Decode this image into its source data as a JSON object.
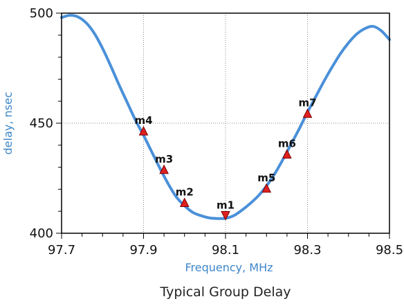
{
  "chart_data": {
    "type": "line",
    "title": "Typical Group Delay",
    "xlabel": "Frequency, MHz",
    "ylabel": "delay, nsec",
    "xlim": [
      97.7,
      98.5
    ],
    "ylim": [
      400,
      500
    ],
    "xticks": [
      "97.7",
      "97.9",
      "98.1",
      "98.3",
      "98.5"
    ],
    "yticks": [
      "400",
      "450",
      "500"
    ],
    "x_gridlines": [
      97.9,
      98.1,
      98.3
    ],
    "y_gridlines": [
      450
    ],
    "grid": "dotted",
    "series": [
      {
        "color": "#4a90d9",
        "x": [
          97.7,
          97.72,
          97.74,
          97.76,
          97.78,
          97.8,
          97.82,
          97.84,
          97.86,
          97.88,
          97.9,
          97.92,
          97.94,
          97.96,
          97.98,
          98.0,
          98.02,
          98.04,
          98.06,
          98.08,
          98.1,
          98.12,
          98.14,
          98.16,
          98.18,
          98.2,
          98.22,
          98.24,
          98.26,
          98.28,
          98.3,
          98.32,
          98.34,
          98.36,
          98.38,
          98.4,
          98.42,
          98.44,
          98.46,
          98.48,
          98.5
        ],
        "y": [
          498.0,
          499.0,
          498.3,
          495.6,
          490.8,
          484.0,
          476.0,
          467.5,
          459.5,
          451.5,
          444.5,
          437.0,
          429.5,
          422.5,
          416.5,
          412.5,
          409.5,
          408.0,
          407.0,
          406.7,
          406.8,
          408.0,
          410.5,
          413.5,
          417.0,
          421.5,
          427.0,
          433.5,
          440.5,
          447.5,
          455.0,
          462.0,
          469.0,
          475.5,
          481.5,
          486.5,
          490.5,
          493.0,
          494.0,
          492.0,
          488.0
        ]
      }
    ],
    "markers": [
      {
        "label": "m1",
        "x": 98.1,
        "y": 408.0,
        "direction": "down"
      },
      {
        "label": "m2",
        "x": 98.0,
        "y": 414.0,
        "direction": "up"
      },
      {
        "label": "m3",
        "x": 97.95,
        "y": 429.0,
        "direction": "up"
      },
      {
        "label": "m4",
        "x": 97.9,
        "y": 446.5,
        "direction": "up"
      },
      {
        "label": "m5",
        "x": 98.2,
        "y": 420.5,
        "direction": "up"
      },
      {
        "label": "m6",
        "x": 98.25,
        "y": 436.0,
        "direction": "up"
      },
      {
        "label": "m7",
        "x": 98.3,
        "y": 454.5,
        "direction": "up"
      }
    ],
    "colors": {
      "line": "#4a90d9",
      "axis_titles": "#3e86c9",
      "marker_fill": "#e02020",
      "marker_stroke": "#7a0000"
    }
  }
}
